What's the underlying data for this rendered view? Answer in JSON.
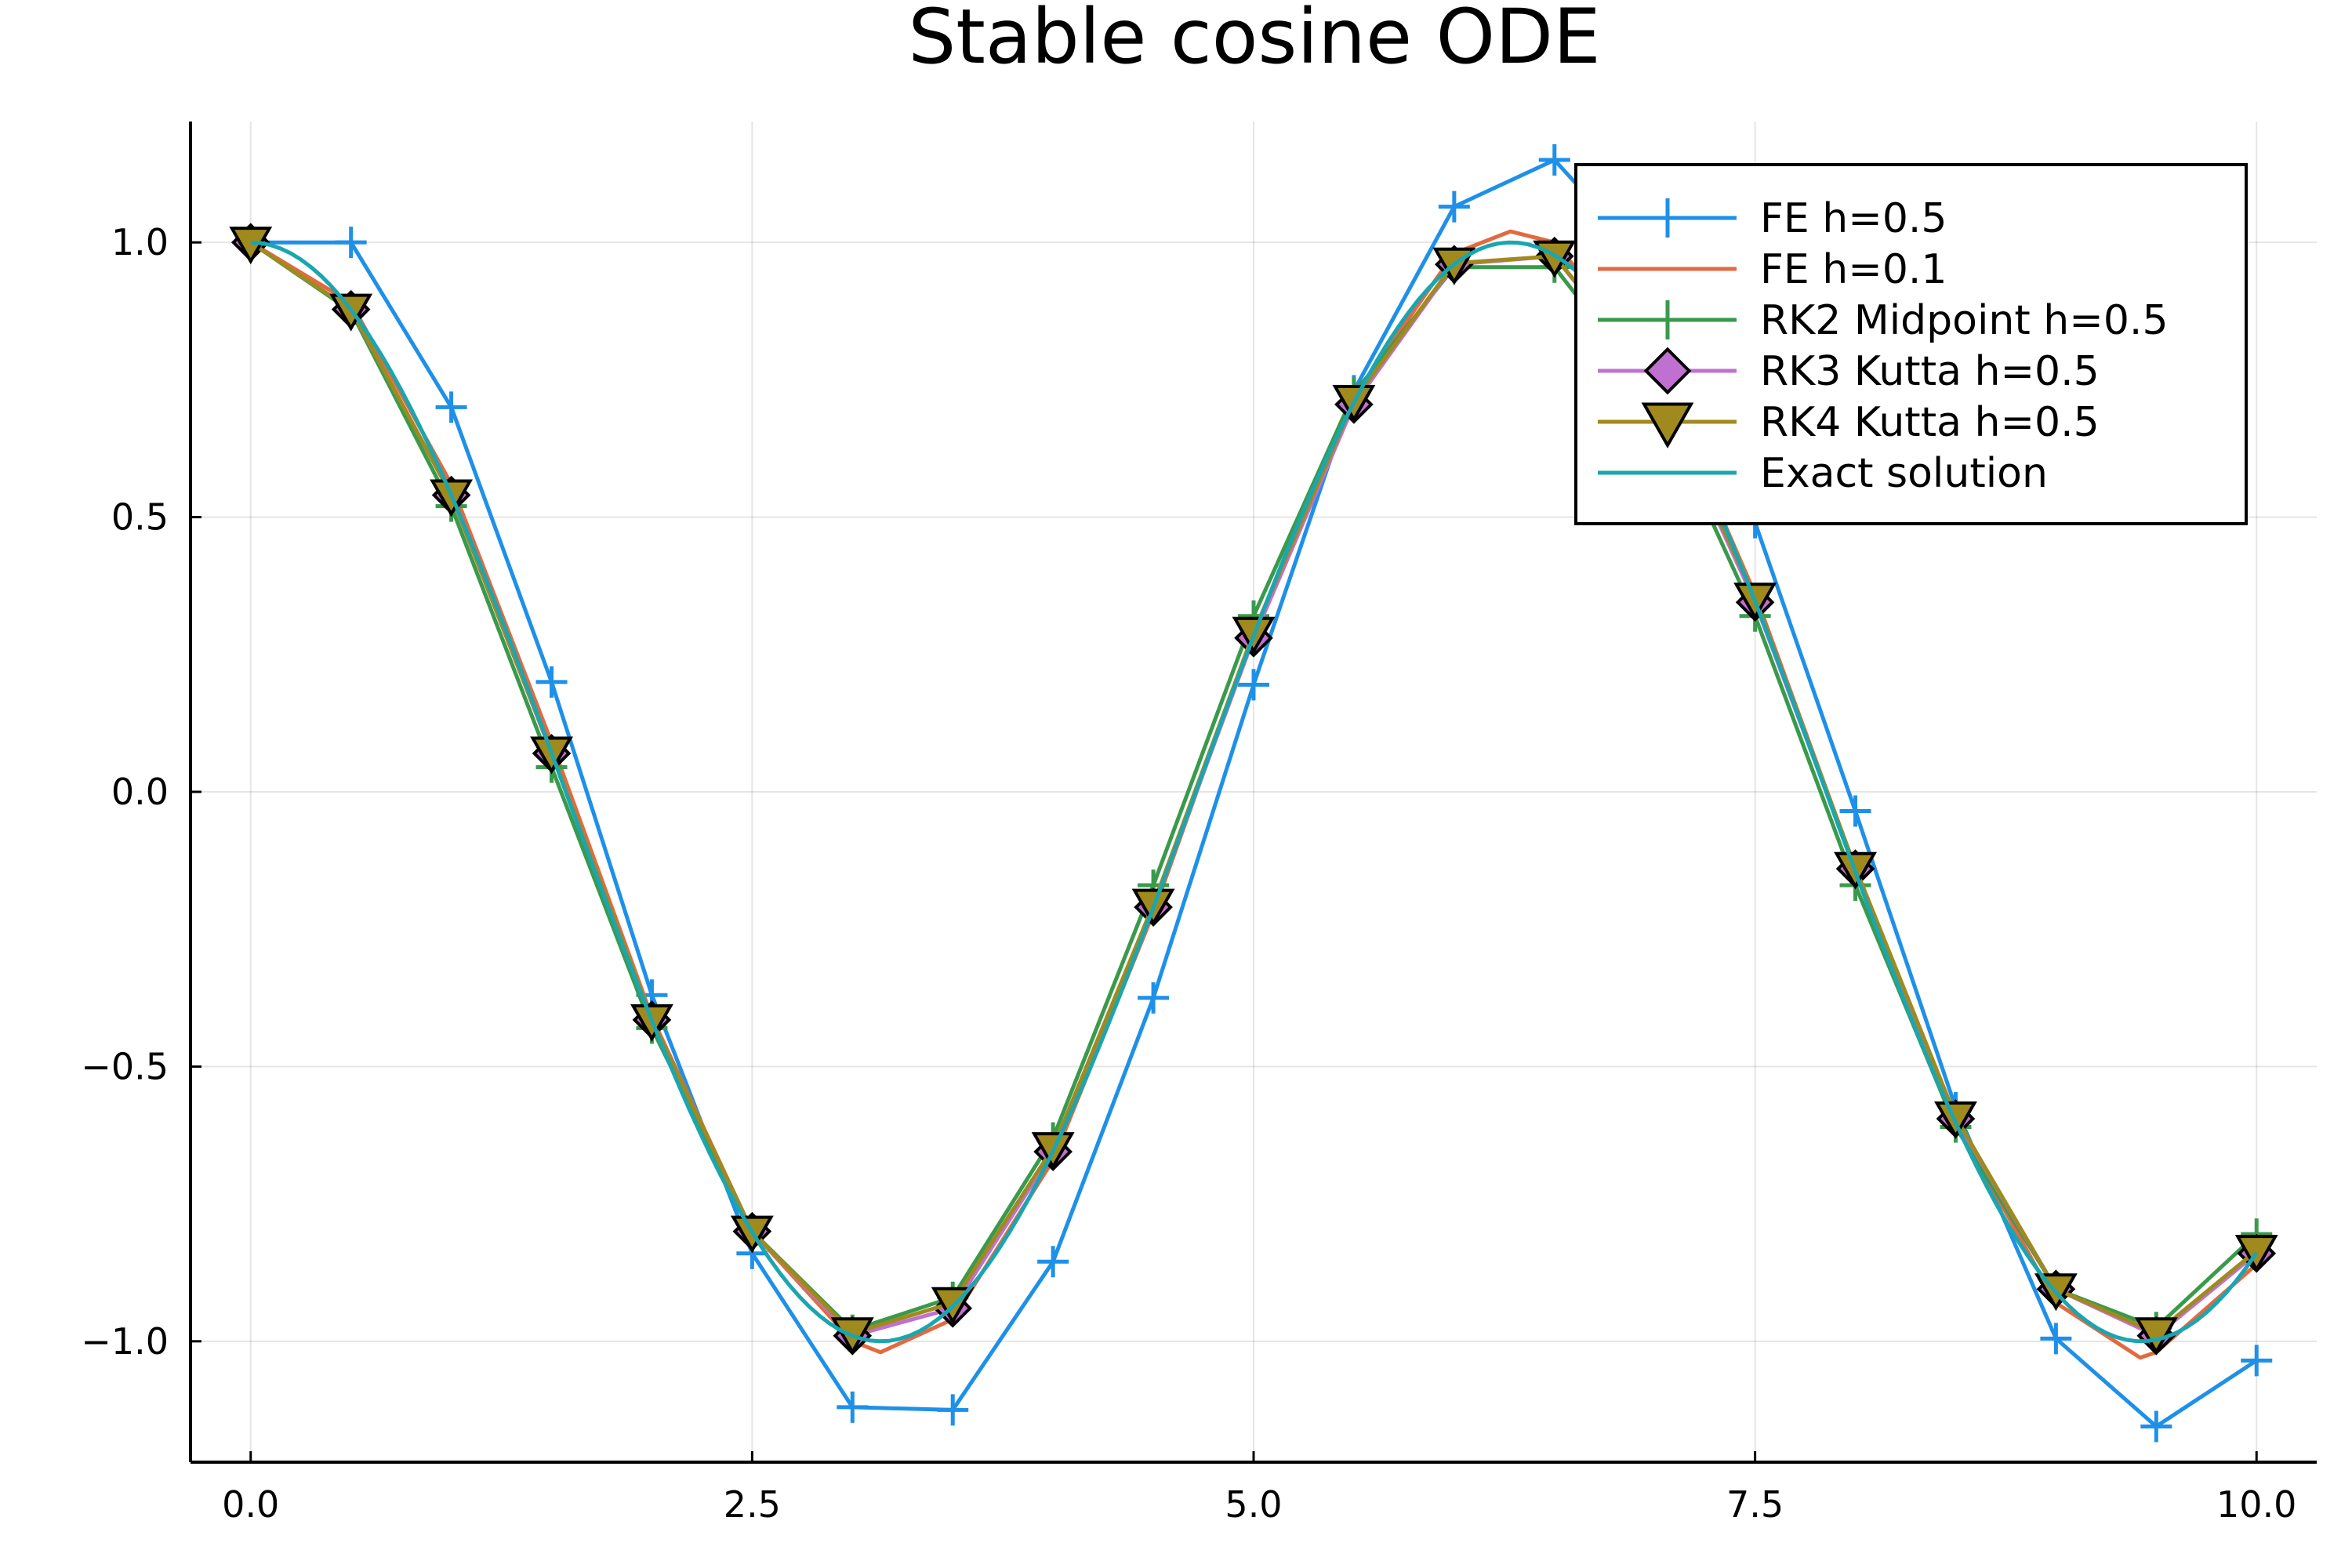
{
  "chart_data": {
    "type": "line",
    "title": "Stable cosine ODE",
    "xlabel": "",
    "ylabel": "",
    "xlim": [
      -0.3,
      10.3
    ],
    "ylim": [
      -1.22,
      1.22
    ],
    "x_ticks": [
      0.0,
      2.5,
      5.0,
      7.5,
      10.0
    ],
    "x_tick_labels": [
      "0.0",
      "2.5",
      "5.0",
      "7.5",
      "10.0"
    ],
    "y_ticks": [
      1.0,
      0.5,
      0.0,
      -0.5,
      -1.0
    ],
    "y_tick_labels": [
      "1.0",
      "0.5",
      "0.0",
      "−0.5",
      "−1.0"
    ],
    "grid": true,
    "legend_position": "top-right",
    "series": [
      {
        "name": "FE h=0.5",
        "color": "#1e90e8",
        "marker": "plus",
        "x": [
          0,
          0.5,
          1,
          1.5,
          2,
          2.5,
          3,
          3.5,
          4,
          4.5,
          5,
          5.5,
          6,
          6.5,
          7,
          7.5,
          8,
          8.5,
          9,
          9.5,
          10
        ],
        "y": [
          1.0,
          1.0,
          0.7,
          0.2,
          -0.37,
          -0.84,
          -1.12,
          -1.125,
          -0.855,
          -0.375,
          0.195,
          0.73,
          1.065,
          1.15,
          0.95,
          0.49,
          -0.035,
          -0.575,
          -0.995,
          -1.155,
          -1.035
        ]
      },
      {
        "name": "FE h=0.1",
        "color": "#e26a40",
        "marker": "none",
        "x": [
          0,
          0.5,
          1,
          1.5,
          2,
          2.5,
          3,
          3.14,
          3.5,
          4,
          4.5,
          5,
          5.5,
          6,
          6.28,
          6.5,
          7,
          7.5,
          8,
          8.5,
          9,
          9.42,
          9.5,
          10
        ],
        "y": [
          1.0,
          0.89,
          0.56,
          0.09,
          -0.41,
          -0.8,
          -1.0,
          -1.02,
          -0.96,
          -0.67,
          -0.22,
          0.29,
          0.72,
          0.98,
          1.02,
          1.0,
          0.78,
          0.36,
          -0.14,
          -0.6,
          -0.93,
          -1.03,
          -1.02,
          -0.86
        ]
      },
      {
        "name": "RK2 Midpoint h=0.5",
        "color": "#3a9a4c",
        "marker": "plus",
        "x": [
          0,
          0.5,
          1,
          1.5,
          2,
          2.5,
          3,
          3.5,
          4,
          4.5,
          5,
          5.5,
          6,
          6.5,
          7,
          7.5,
          8,
          8.5,
          9,
          9.5,
          10
        ],
        "y": [
          1.0,
          0.875,
          0.52,
          0.045,
          -0.43,
          -0.8,
          -0.98,
          -0.92,
          -0.63,
          -0.17,
          0.32,
          0.725,
          0.955,
          0.955,
          0.72,
          0.32,
          -0.17,
          -0.61,
          -0.905,
          -0.975,
          -0.805
        ]
      },
      {
        "name": "RK3 Kutta h=0.5",
        "color": "#c070d0",
        "marker": "diamond",
        "x": [
          0,
          0.5,
          1,
          1.5,
          2,
          2.5,
          3,
          3.5,
          4,
          4.5,
          5,
          5.5,
          6,
          6.5,
          7,
          7.5,
          8,
          8.5,
          9,
          9.5,
          10
        ],
        "y": [
          1.0,
          0.878,
          0.54,
          0.07,
          -0.415,
          -0.8,
          -0.99,
          -0.94,
          -0.655,
          -0.21,
          0.28,
          0.705,
          0.96,
          0.975,
          0.745,
          0.345,
          -0.14,
          -0.595,
          -0.905,
          -0.99,
          -0.84
        ]
      },
      {
        "name": "RK4 Kutta h=0.5",
        "color": "#a08a1e",
        "marker": "triangle-down",
        "x": [
          0,
          0.5,
          1,
          1.5,
          2,
          2.5,
          3,
          3.5,
          4,
          4.5,
          5,
          5.5,
          6,
          6.5,
          7,
          7.5,
          8,
          8.5,
          9,
          9.5,
          10
        ],
        "y": [
          1.0,
          0.878,
          0.54,
          0.072,
          -0.415,
          -0.8,
          -0.985,
          -0.93,
          -0.648,
          -0.205,
          0.29,
          0.712,
          0.962,
          0.975,
          0.752,
          0.352,
          -0.138,
          -0.592,
          -0.905,
          -0.985,
          -0.835
        ]
      },
      {
        "name": "Exact solution",
        "color": "#1aa6b0",
        "marker": "none",
        "function": "cos",
        "x_range": [
          0,
          10
        ],
        "samples": 201
      }
    ]
  }
}
